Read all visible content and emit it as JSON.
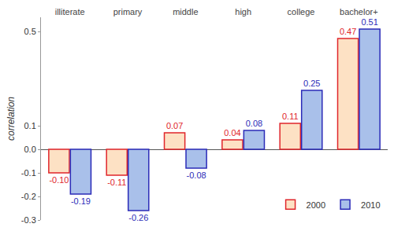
{
  "chart_data": {
    "type": "bar",
    "categories": [
      "illiterate",
      "primary",
      "middle",
      "high",
      "college",
      "bachelor+"
    ],
    "series": [
      {
        "name": "2000",
        "color": "#e0262b",
        "values": [
          -0.1,
          -0.11,
          0.07,
          0.04,
          0.11,
          0.47
        ],
        "value_labels": [
          "-0.10",
          "-0.11",
          "0.07",
          "0.04",
          "0.11",
          "0.47"
        ]
      },
      {
        "name": "2010",
        "color": "#2b2bb8",
        "values": [
          -0.19,
          -0.26,
          -0.08,
          0.08,
          0.25,
          0.51
        ],
        "value_labels": [
          "-0.19",
          "-0.26",
          "-0.08",
          "0.08",
          "0.25",
          "0.51"
        ]
      }
    ],
    "y_label": "correlation",
    "ylim": [
      -0.3,
      0.56
    ],
    "yticks": [
      {
        "value": -0.3,
        "label": "-0.3"
      },
      {
        "value": -0.2,
        "label": "-0.2"
      },
      {
        "value": -0.1,
        "label": "-0.1"
      },
      {
        "value": 0,
        "label": "0.0"
      },
      {
        "value": 0.1,
        "label": "0.1"
      },
      {
        "value": 0.5,
        "label": "0.5"
      }
    ],
    "grid": false,
    "legend": "bottom right",
    "data_labels": true
  }
}
